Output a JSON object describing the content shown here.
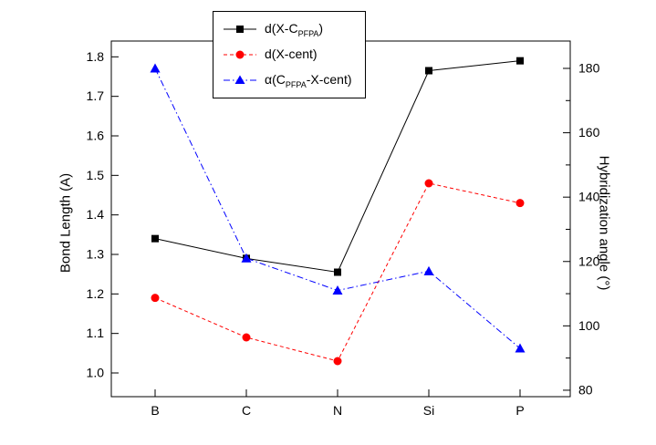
{
  "chart_data": {
    "type": "line",
    "title": "",
    "categories": [
      "B",
      "C",
      "N",
      "Si",
      "P"
    ],
    "series": [
      {
        "name": "d(X-C_PFPA)",
        "axis": "left",
        "color": "#000000",
        "marker": "square",
        "line_style": "solid",
        "values": [
          1.34,
          1.29,
          1.255,
          1.765,
          1.79
        ]
      },
      {
        "name": "d(X-cent)",
        "axis": "left",
        "color": "#ff0000",
        "marker": "circle",
        "line_style": "dashed",
        "values": [
          1.19,
          1.09,
          1.03,
          1.48,
          1.43
        ]
      },
      {
        "name": "α(C_PFPA-X-cent)",
        "axis": "right",
        "color": "#0000ff",
        "marker": "triangle",
        "line_style": "dashdot",
        "values": [
          180,
          121,
          111,
          117,
          93
        ]
      }
    ],
    "left_axis": {
      "label": "Bond Length (A)",
      "range": [
        0.94,
        1.84
      ],
      "major_ticks": [
        1.0,
        1.1,
        1.2,
        1.3,
        1.4,
        1.5,
        1.6,
        1.7,
        1.8
      ],
      "tick_labels": [
        "1.0",
        "1.1",
        "1.2",
        "1.3",
        "1.4",
        "1.5",
        "1.6",
        "1.7",
        "1.8"
      ],
      "minor_step": 0.05
    },
    "right_axis": {
      "label": "Hybridization angle (°)",
      "range": [
        78,
        188.5
      ],
      "major_ticks": [
        80,
        100,
        120,
        140,
        160,
        180
      ],
      "tick_labels": [
        "80",
        "100",
        "120",
        "140",
        "160",
        "180"
      ],
      "minor_step": 10
    },
    "x_axis": {
      "tick_labels": [
        "B",
        "C",
        "N",
        "Si",
        "P"
      ]
    },
    "grid": false,
    "legend_position": "top-center"
  },
  "legend": {
    "entries": [
      {
        "pre": "d(X-C",
        "sub": "PFPA",
        "post": ")"
      },
      {
        "pre": "d(X-cent)",
        "sub": "",
        "post": ""
      },
      {
        "pre": "α(C",
        "sub": "PFPA",
        "post": "-X-cent)"
      }
    ]
  },
  "axis_titles": {
    "left": "Bond Length (A)",
    "right": "Hybridization angle (°)"
  }
}
